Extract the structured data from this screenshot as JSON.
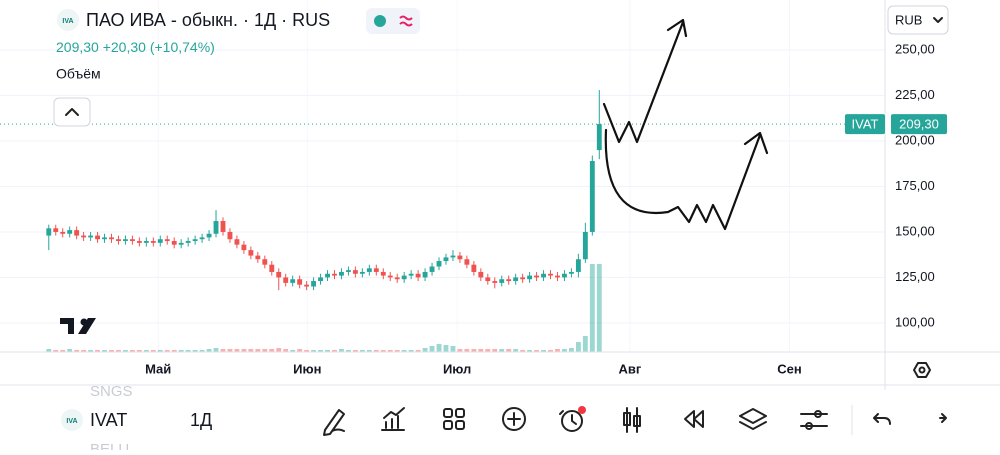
{
  "header": {
    "logo": "IVA",
    "title": "ПАО ИВА - обыкн. · 1Д · RUS",
    "price": "209,30",
    "change": "+20,30",
    "change_pct": "(+10,74%)",
    "volume_label": "Объём",
    "currency": "RUB"
  },
  "chart_data": {
    "type": "candlestick",
    "open": [
      148,
      152,
      150,
      149,
      151,
      148,
      147,
      148,
      146,
      147,
      146,
      145,
      146,
      145,
      144,
      145,
      144,
      146,
      145,
      143,
      144,
      145,
      146,
      147,
      149,
      156,
      150,
      146,
      143,
      140,
      137,
      135,
      132,
      128,
      125,
      122,
      124,
      121,
      120,
      123,
      125,
      127,
      126,
      128,
      129,
      127,
      128,
      130,
      128,
      126,
      125,
      124,
      126,
      127,
      125,
      128,
      131,
      134,
      136,
      137,
      135,
      132,
      128,
      125,
      123,
      122,
      124,
      123,
      125,
      124,
      126,
      125,
      127,
      126,
      125,
      127,
      128,
      135,
      150,
      195
    ],
    "high": [
      154,
      154,
      152,
      153,
      153,
      150,
      150,
      150,
      149,
      149,
      148,
      148,
      148,
      147,
      147,
      147,
      148,
      148,
      147,
      146,
      147,
      148,
      149,
      151,
      162,
      158,
      152,
      148,
      145,
      142,
      139,
      137,
      134,
      130,
      127,
      126,
      126,
      123,
      125,
      127,
      129,
      129,
      130,
      131,
      131,
      130,
      132,
      132,
      130,
      128,
      127,
      128,
      129,
      129,
      130,
      133,
      136,
      138,
      140,
      139,
      137,
      134,
      130,
      127,
      125,
      126,
      126,
      127,
      127,
      128,
      128,
      129,
      129,
      128,
      129,
      130,
      138,
      155,
      192,
      228
    ],
    "low": [
      140,
      148,
      147,
      147,
      146,
      145,
      145,
      144,
      144,
      144,
      143,
      143,
      143,
      142,
      142,
      142,
      142,
      143,
      141,
      141,
      142,
      143,
      144,
      145,
      147,
      148,
      144,
      141,
      138,
      135,
      133,
      130,
      126,
      118,
      120,
      120,
      119,
      118,
      118,
      121,
      123,
      124,
      124,
      126,
      125,
      125,
      126,
      126,
      124,
      123,
      122,
      122,
      124,
      123,
      123,
      126,
      129,
      132,
      134,
      133,
      130,
      126,
      123,
      121,
      119,
      120,
      121,
      121,
      122,
      122,
      123,
      123,
      124,
      123,
      123,
      125,
      125,
      133,
      148,
      190
    ],
    "close": [
      152,
      150,
      149,
      151,
      148,
      147,
      148,
      146,
      147,
      146,
      145,
      146,
      145,
      144,
      145,
      144,
      146,
      145,
      143,
      144,
      145,
      146,
      147,
      149,
      156,
      150,
      146,
      143,
      140,
      137,
      135,
      132,
      128,
      125,
      122,
      124,
      121,
      120,
      123,
      125,
      127,
      126,
      128,
      129,
      127,
      128,
      130,
      128,
      126,
      125,
      124,
      126,
      127,
      125,
      128,
      131,
      134,
      136,
      137,
      135,
      132,
      128,
      125,
      123,
      122,
      124,
      123,
      125,
      124,
      126,
      125,
      127,
      126,
      125,
      127,
      128,
      135,
      150,
      189,
      209.3
    ],
    "volume": [
      3,
      2,
      2,
      3,
      2,
      2,
      2,
      2,
      2,
      2,
      2,
      2,
      2,
      2,
      2,
      2,
      2,
      2,
      2,
      2,
      2,
      2,
      2,
      3,
      4,
      3,
      3,
      3,
      3,
      3,
      3,
      3,
      3,
      4,
      3,
      2,
      3,
      2,
      2,
      2,
      2,
      2,
      3,
      2,
      2,
      2,
      2,
      2,
      2,
      2,
      2,
      2,
      2,
      2,
      4,
      6,
      8,
      7,
      6,
      3,
      3,
      3,
      3,
      3,
      3,
      3,
      3,
      3,
      2,
      2,
      2,
      2,
      2,
      3,
      3,
      4,
      10,
      16,
      88,
      88
    ],
    "up_color": "#26a69a",
    "down_color": "#ef5350",
    "xlim": [
      -7,
      120
    ],
    "xticks": [
      {
        "value": 15.7,
        "label": "Май"
      },
      {
        "value": 37.1,
        "label": "Июн"
      },
      {
        "value": 58.6,
        "label": "Июл"
      },
      {
        "value": 83.4,
        "label": "Авг"
      },
      {
        "value": 106.3,
        "label": "Сен"
      }
    ],
    "ylim": [
      84,
      277.5
    ],
    "yticks": [
      {
        "value": 250,
        "label": "250,00"
      },
      {
        "value": 225,
        "label": "225,00"
      },
      {
        "value": 200,
        "label": "200,00"
      },
      {
        "value": 175,
        "label": "175,00"
      },
      {
        "value": 150,
        "label": "150,00"
      },
      {
        "value": 125,
        "label": "125,00"
      },
      {
        "value": 100,
        "label": "100,00"
      }
    ],
    "grid": true,
    "last_price": {
      "ticker": "IVAT",
      "value": 209.3,
      "label": "209,30"
    }
  },
  "toolbar": {
    "symbols": [
      "SNGS",
      "IVAT",
      "BELU"
    ],
    "interval": "1Д"
  }
}
